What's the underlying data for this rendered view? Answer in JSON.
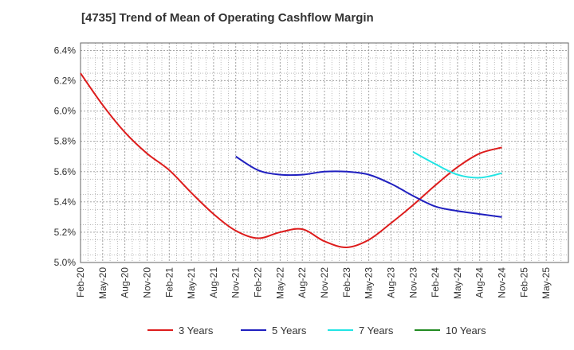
{
  "chart_data": {
    "type": "line",
    "title": "[4735]  Trend of Mean of Operating Cashflow Margin",
    "xlabel": "",
    "ylabel": "",
    "x_ticks": [
      "Feb-20",
      "May-20",
      "Aug-20",
      "Nov-20",
      "Feb-21",
      "May-21",
      "Aug-21",
      "Nov-21",
      "Feb-22",
      "May-22",
      "Aug-22",
      "Nov-22",
      "Feb-23",
      "May-23",
      "Aug-23",
      "Nov-23",
      "Feb-24",
      "May-24",
      "Aug-24",
      "Nov-24",
      "Feb-25",
      "May-25"
    ],
    "y_ticks": [
      "5.0%",
      "5.2%",
      "5.4%",
      "5.6%",
      "5.8%",
      "6.0%",
      "6.2%",
      "6.4%"
    ],
    "ylim": [
      5.0,
      6.45
    ],
    "grid": true,
    "legend_position": "bottom",
    "series": [
      {
        "name": "3 Years",
        "color": "#dd1c1c",
        "points": [
          [
            "Feb-20",
            6.25
          ],
          [
            "May-20",
            6.04
          ],
          [
            "Aug-20",
            5.86
          ],
          [
            "Nov-20",
            5.72
          ],
          [
            "Feb-21",
            5.61
          ],
          [
            "May-21",
            5.46
          ],
          [
            "Aug-21",
            5.32
          ],
          [
            "Nov-21",
            5.21
          ],
          [
            "Feb-22",
            5.16
          ],
          [
            "May-22",
            5.2
          ],
          [
            "Aug-22",
            5.22
          ],
          [
            "Nov-22",
            5.14
          ],
          [
            "Feb-23",
            5.1
          ],
          [
            "May-23",
            5.15
          ],
          [
            "Aug-23",
            5.26
          ],
          [
            "Nov-23",
            5.38
          ],
          [
            "Feb-24",
            5.51
          ],
          [
            "May-24",
            5.63
          ],
          [
            "Aug-24",
            5.72
          ],
          [
            "Nov-24",
            5.76
          ]
        ]
      },
      {
        "name": "5 Years",
        "color": "#1f1fbf",
        "points": [
          [
            "Nov-21",
            5.7
          ],
          [
            "Feb-22",
            5.61
          ],
          [
            "May-22",
            5.58
          ],
          [
            "Aug-22",
            5.58
          ],
          [
            "Nov-22",
            5.6
          ],
          [
            "Feb-23",
            5.6
          ],
          [
            "May-23",
            5.58
          ],
          [
            "Aug-23",
            5.52
          ],
          [
            "Nov-23",
            5.44
          ],
          [
            "Feb-24",
            5.37
          ],
          [
            "May-24",
            5.34
          ],
          [
            "Aug-24",
            5.32
          ],
          [
            "Nov-24",
            5.3
          ]
        ]
      },
      {
        "name": "7 Years",
        "color": "#22e4e4",
        "points": [
          [
            "Nov-23",
            5.73
          ],
          [
            "Feb-24",
            5.65
          ],
          [
            "May-24",
            5.58
          ],
          [
            "Aug-24",
            5.56
          ],
          [
            "Nov-24",
            5.59
          ]
        ]
      },
      {
        "name": "10 Years",
        "color": "#228b22",
        "points": []
      }
    ]
  }
}
